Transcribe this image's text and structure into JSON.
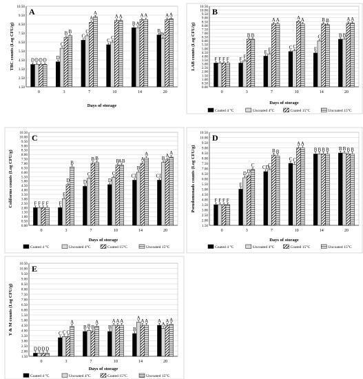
{
  "categories": [
    "0",
    "3",
    "7",
    "10",
    "14",
    "20"
  ],
  "series_names": [
    "Coated 4 °C",
    "Uncoated 4°C",
    "Coated 15°C",
    "Uncoated 15°C"
  ],
  "colors": {
    "coated4": "#000000",
    "uncoated4": "#d9d9d9",
    "border": "#000000",
    "background": "#ffffff",
    "grid": "#d0d0d0"
  },
  "chart_data": [
    {
      "type": "bar",
      "panel_letter": "A",
      "ylabel": "TBC counts (Log CFU/g)",
      "xlabel": "Days of storage",
      "ylim": [
        1.5,
        10.5
      ],
      "yticks": [
        "1.50",
        "2.50",
        "3.50",
        "4.50",
        "5.50",
        "6.50",
        "7.50",
        "8.50",
        "9.50",
        "10.50"
      ],
      "categories": [
        "0",
        "3",
        "7",
        "10",
        "14",
        "20"
      ],
      "series": [
        {
          "name": "Coated 4 °C",
          "values": [
            4.0,
            4.3,
            6.7,
            6.2,
            8.1,
            7.3
          ],
          "letters": [
            "D",
            "D",
            "C",
            "C",
            "B",
            "B"
          ]
        },
        {
          "name": "Uncoated 4°C",
          "values": [
            4.0,
            5.8,
            7.2,
            6.5,
            8.1,
            6.9
          ],
          "letters": [
            "D",
            "C",
            "C",
            "C",
            "A",
            "BC"
          ]
        },
        {
          "name": "Coated 15°C",
          "values": [
            4.0,
            7.0,
            8.7,
            8.9,
            9.0,
            9.0
          ],
          "letters": [
            "D",
            "B",
            "A",
            "A",
            "A",
            "A"
          ]
        },
        {
          "name": "Uncoated 15°C",
          "values": [
            4.0,
            7.2,
            9.3,
            8.9,
            9.0,
            9.1
          ],
          "letters": [
            "D",
            "B",
            "A",
            "A",
            "A",
            "A"
          ]
        }
      ],
      "legend": "none"
    },
    {
      "type": "bar",
      "panel_letter": "B",
      "ylabel": "LAB counts (Log CFU/g)",
      "xlabel": "Days of storage",
      "ylim": [
        0,
        10.5
      ],
      "yticks": [
        "0.00",
        "0.50",
        "1.00",
        "1.50",
        "2.00",
        "2.50",
        "3.00",
        "3.50",
        "4.00",
        "4.50",
        "5.00",
        "5.50",
        "6.00",
        "6.50",
        "7.00",
        "7.50",
        "8.00",
        "8.50",
        "9.00",
        "9.50",
        "10.00",
        "10.50"
      ],
      "categories": [
        "0",
        "3",
        "7",
        "10",
        "14",
        "20"
      ],
      "series": [
        {
          "name": "Coated 4 °C",
          "values": [
            3.1,
            3.1,
            4.0,
            4.6,
            4.4,
            6.2
          ],
          "letters": [
            "F",
            "F",
            "E",
            "C",
            "E",
            "B"
          ]
        },
        {
          "name": "Uncoated 4°C",
          "values": [
            3.1,
            3.4,
            4.3,
            4.7,
            6.0,
            6.2
          ],
          "letters": [
            "F",
            "F",
            "E",
            "C",
            "C",
            "B"
          ]
        },
        {
          "name": "Coated 15°C",
          "values": [
            3.1,
            6.2,
            8.2,
            8.5,
            8.2,
            8.3
          ],
          "letters": [
            "F",
            "B",
            "A",
            "A",
            "B",
            "A"
          ]
        },
        {
          "name": "Uncoated 15°C",
          "values": [
            3.1,
            6.2,
            8.2,
            8.2,
            8.1,
            8.3
          ],
          "letters": [
            "F",
            "B",
            "A",
            "A",
            "B",
            "A"
          ]
        }
      ],
      "legend": "bottom"
    },
    {
      "type": "bar",
      "panel_letter": "C",
      "ylabel": "Coliforms counts (Log CFU/g)",
      "xlabel": "Days of storage",
      "ylim": [
        0,
        10.5
      ],
      "yticks": [
        "0.00",
        "0.50",
        "1.00",
        "1.50",
        "2.00",
        "2.50",
        "3.00",
        "3.50",
        "4.00",
        "4.50",
        "5.00",
        "5.50",
        "6.00",
        "6.50",
        "7.00",
        "7.50",
        "8.00",
        "8.50",
        "9.00",
        "9.50",
        "10.00",
        "10.50"
      ],
      "categories": [
        "0",
        "3",
        "7",
        "10",
        "14",
        "20"
      ],
      "series": [
        {
          "name": "Coated 4 °C",
          "values": [
            2.0,
            2.0,
            4.4,
            4.6,
            5.1,
            5.1
          ],
          "letters": [
            "F",
            "F",
            "D",
            "D",
            "CD",
            "CD"
          ]
        },
        {
          "name": "Uncoated 4°C",
          "values": [
            2.0,
            3.0,
            5.3,
            5.4,
            6.0,
            7.1
          ],
          "letters": [
            "F",
            "E",
            "C",
            "C",
            "B",
            "B"
          ]
        },
        {
          "name": "Coated 15°C",
          "values": [
            2.0,
            4.6,
            7.0,
            6.8,
            7.0,
            7.4
          ],
          "letters": [
            "F",
            "D",
            "B",
            "B",
            "A",
            "A"
          ]
        },
        {
          "name": "Uncoated 15°C",
          "values": [
            2.0,
            6.6,
            7.1,
            6.8,
            7.6,
            7.7
          ],
          "letters": [
            "F",
            "B",
            "B",
            "AB",
            "A",
            "A"
          ]
        }
      ],
      "legend": "bottom"
    },
    {
      "type": "bar",
      "panel_letter": "D",
      "ylabel": "Pseudomonads counts (Log CFU/g)",
      "xlabel": "Days of storage",
      "ylim": [
        1.5,
        10.5
      ],
      "yticks": [
        "1.50",
        "2.00",
        "2.50",
        "3.00",
        "3.50",
        "4.00",
        "4.50",
        "5.00",
        "5.50",
        "6.00",
        "6.50",
        "7.00",
        "7.50",
        "8.00",
        "8.50",
        "9.00",
        "9.50",
        "10.00",
        "10.50"
      ],
      "categories": [
        "0",
        "3",
        "7",
        "10",
        "14",
        "20"
      ],
      "series": [
        {
          "name": "Coated 4 °C",
          "values": [
            3.5,
            5.0,
            6.7,
            7.5,
            8.4,
            8.5
          ],
          "letters": [
            "F",
            "E",
            "CD",
            "C",
            "B",
            "B"
          ]
        },
        {
          "name": "Uncoated 4°C",
          "values": [
            3.5,
            6.1,
            6.9,
            7.4,
            8.4,
            8.5
          ],
          "letters": [
            "F",
            "D",
            "C",
            "C",
            "B",
            "B"
          ]
        },
        {
          "name": "Coated 15°C",
          "values": [
            3.5,
            6.3,
            8.3,
            9.0,
            8.4,
            8.4
          ],
          "letters": [
            "F",
            "D",
            "B",
            "A",
            "B",
            "B"
          ]
        },
        {
          "name": "Uncoated 15°C",
          "values": [
            3.5,
            6.9,
            8.2,
            9.0,
            8.4,
            8.4
          ],
          "letters": [
            "F",
            "C",
            "B",
            "A",
            "B",
            "B"
          ]
        }
      ],
      "legend": "bottom"
    },
    {
      "type": "bar",
      "panel_letter": "E",
      "ylabel": "Y & M counts (Log CFU/g)",
      "xlabel": "Days of storage",
      "ylim": [
        1.5,
        10.5
      ],
      "yticks": [
        "1.50",
        "2.00",
        "2.50",
        "3.00",
        "3.50",
        "4.00",
        "4.50",
        "5.00",
        "5.50",
        "6.00",
        "6.50",
        "7.00",
        "7.50",
        "8.00",
        "8.50",
        "9.00",
        "9.50",
        "10.00",
        "10.50"
      ],
      "categories": [
        "0",
        "3",
        "7",
        "10",
        "14",
        "20"
      ],
      "series": [
        {
          "name": "Coated 4 °C",
          "values": [
            1.8,
            3.3,
            3.9,
            3.9,
            3.7,
            4.5
          ],
          "letters": [
            "D",
            "C",
            "B",
            "B",
            "B",
            "A"
          ]
        },
        {
          "name": "Uncoated 4°C",
          "values": [
            1.8,
            3.4,
            4.0,
            4.5,
            4.8,
            4.2
          ],
          "letters": [
            "D",
            "C",
            "B",
            "A",
            "A",
            "A"
          ]
        },
        {
          "name": "Coated 15°C",
          "values": [
            1.8,
            3.4,
            3.9,
            4.5,
            4.5,
            4.5
          ],
          "letters": [
            "D",
            "C",
            "B",
            "A",
            "A",
            "A"
          ]
        },
        {
          "name": "Uncoated 15°C",
          "values": [
            1.8,
            4.4,
            4.4,
            4.5,
            4.5,
            4.6
          ],
          "letters": [
            "D",
            "A",
            "A",
            "A",
            "A",
            "A"
          ]
        }
      ],
      "legend": "bottom"
    }
  ]
}
